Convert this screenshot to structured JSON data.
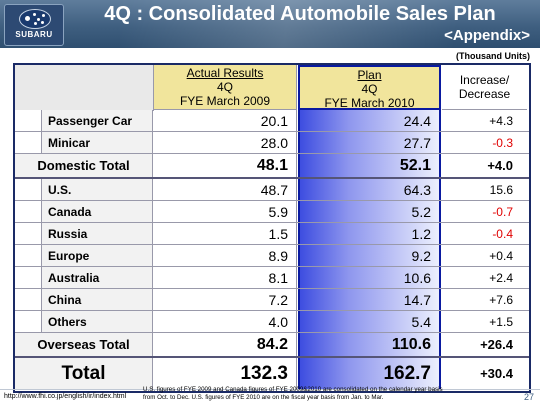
{
  "header": {
    "logo_text": "SUBARU",
    "title": "4Q : Consolidated Automobile Sales Plan",
    "subtitle": "<Appendix>",
    "colors": {
      "band": "#3f5f80",
      "plan_border": "#0a1aa0",
      "negative": "#e00000",
      "header_fill": "#f1e59c"
    }
  },
  "units": "(Thousand Units)",
  "columns": {
    "actual": {
      "line1": "Actual Results",
      "line2": "4Q",
      "line3": "FYE March 2009"
    },
    "plan": {
      "line1": "Plan",
      "line2": "4Q",
      "line3": "FYE March 2010"
    },
    "change": {
      "line1": "Increase/",
      "line2": "Decrease"
    }
  },
  "rows": [
    {
      "label": "Passenger Car",
      "actual": "20.1",
      "plan": "24.4",
      "change": "+4.3"
    },
    {
      "label": "Minicar",
      "actual": "28.0",
      "plan": "27.7",
      "change": "-0.3"
    },
    {
      "label": "Domestic Total",
      "actual": "48.1",
      "plan": "52.1",
      "change": "+4.0"
    },
    {
      "label": "U.S.",
      "actual": "48.7",
      "plan": "64.3",
      "change": "15.6"
    },
    {
      "label": "Canada",
      "actual": "5.9",
      "plan": "5.2",
      "change": "-0.7"
    },
    {
      "label": "Russia",
      "actual": "1.5",
      "plan": "1.2",
      "change": "-0.4"
    },
    {
      "label": "Europe",
      "actual": "8.9",
      "plan": "9.2",
      "change": "+0.4"
    },
    {
      "label": "Australia",
      "actual": "8.1",
      "plan": "10.6",
      "change": "+2.4"
    },
    {
      "label": "China",
      "actual": "7.2",
      "plan": "14.7",
      "change": "+7.6"
    },
    {
      "label": "Others",
      "actual": "4.0",
      "plan": "5.4",
      "change": "+1.5"
    },
    {
      "label": "Overseas Total",
      "actual": "84.2",
      "plan": "110.6",
      "change": "+26.4"
    },
    {
      "label": "Total",
      "actual": "132.3",
      "plan": "162.7",
      "change": "+30.4"
    }
  ],
  "footer": {
    "url": "http://www.fhi.co.jp/english/ir/index.html",
    "note_line1": "U.S. figures of FYE 2009 and Canada figures of FYE 2009&2010 are consolidated on the calendar year basis",
    "note_line2": "from Oct. to Dec. U.S. figures of FYE 2010 are on the fiscal year basis from Jan. to Mar.",
    "page": "27"
  }
}
